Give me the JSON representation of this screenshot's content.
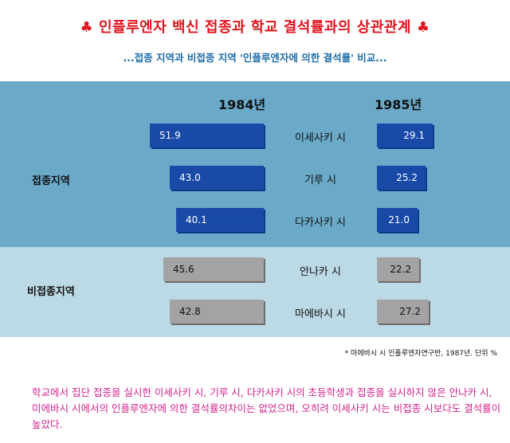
{
  "title": {
    "text": "인플루엔자 백신 접종과 학교 결석률과의 상관관계",
    "suit_left": "♣",
    "suit_right": "♣"
  },
  "subtitle": "...접종 지역과 비접종 지역 '인플루엔자에 의한 결석률' 비교...",
  "years": [
    "1984년",
    "1985년"
  ],
  "groups": [
    {
      "label": "접종지역"
    },
    {
      "label": "비접종지역"
    }
  ],
  "footnote": "* 마에바시 시 인플루엔자연구반, 1987년. 단위 %",
  "note": "학교에서 집단 접종을 실시한 이세사키 시, 기루 시, 다카사키 시의 초등학생과 접종을 실시하지 않은 안나카 시, 미에바시 시에서의 인플루엔자에 의한 결석률의차이는 없었으며, 오히려 이세사키 시는 비접종 시보다도 결석률이 높았다.",
  "colors": {
    "title": "#e0141e",
    "subtitle": "#1f6ea8",
    "band_vaccinated": "#6aa9c8",
    "band_unvaccinated": "#bcd9e6",
    "bar_vaccinated": "#1a4aa8",
    "bar_unvaccinated": "#a3a3a3",
    "note": "#d4248f"
  },
  "chart_data": {
    "type": "bar",
    "orientation": "horizontal-butterfly",
    "unit": "%",
    "categories": [
      "이세사키 시",
      "기루 시",
      "다카사키 시",
      "안나카 시",
      "마에바시 시"
    ],
    "category_groups": [
      "접종지역",
      "접종지역",
      "접종지역",
      "비접종지역",
      "비접종지역"
    ],
    "series": [
      {
        "name": "1984년",
        "values": [
          51.9,
          43.0,
          40.1,
          45.6,
          42.8
        ],
        "labels": [
          "51.9",
          "43.0",
          "40.1",
          "45.6",
          "42.8"
        ]
      },
      {
        "name": "1985년",
        "values": [
          29.1,
          25.2,
          21.0,
          22.2,
          27.2
        ],
        "labels": [
          "29.1",
          "25.2",
          "21.0",
          "22.2",
          "27.2"
        ]
      }
    ]
  }
}
